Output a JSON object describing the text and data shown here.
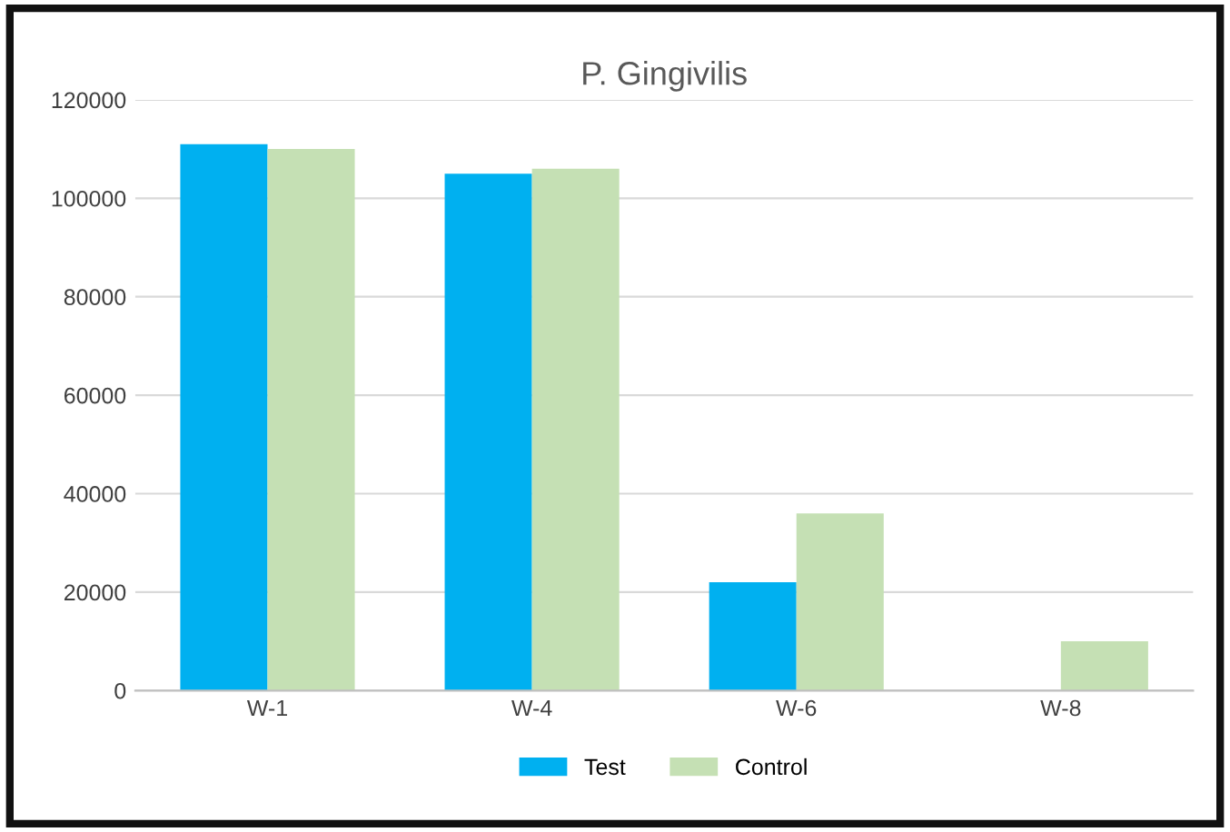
{
  "chart_data": {
    "type": "bar",
    "title": "P. Gingivilis",
    "categories": [
      "W-1",
      "W-4",
      "W-6",
      "W-8"
    ],
    "series": [
      {
        "name": "Test",
        "color": "#00b0f0",
        "values": [
          111000,
          105000,
          22000,
          0
        ]
      },
      {
        "name": "Control",
        "color": "#c5e0b4",
        "values": [
          110000,
          106000,
          36000,
          10000
        ]
      }
    ],
    "ylim": [
      0,
      120000
    ],
    "yticks": [
      0,
      20000,
      40000,
      60000,
      80000,
      100000,
      120000
    ],
    "grid": "y",
    "legend": "bottom"
  }
}
